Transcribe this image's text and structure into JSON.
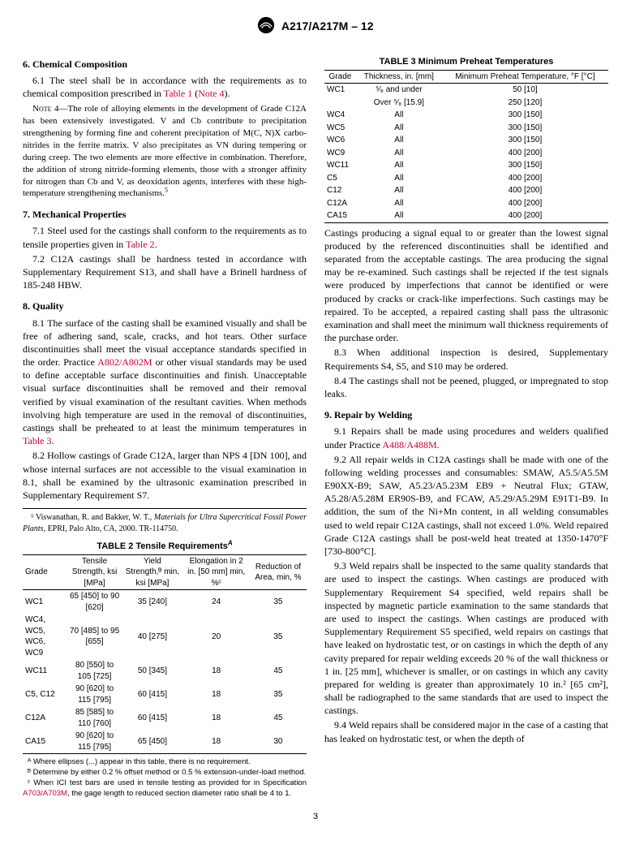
{
  "header": {
    "designation": "A217/A217M – 12"
  },
  "sections": {
    "s6": {
      "title": "6.  Chemical Composition",
      "p1_lead": "6.1 The steel shall be in accordance with the requirements as to chemical composition prescribed in ",
      "p1_ref1": "Table 1",
      "p1_mid": " (",
      "p1_ref2": "Note 4",
      "p1_end": ").",
      "note4_label": "Note 4—",
      "note4_body": "The role of alloying elements in the development of Grade C12A has been extensively investigated. V and Cb contribute to precipitation strengthening by forming fine and coherent precipitation of M(C, N)X carbo-nitrides in the ferrite matrix. V also precipitates as VN during tempering or during creep. The two elements are more effective in combination. Therefore, the addition of strong nitride-forming elements, those with a stronger affinity for nitrogen than Cb and V, as deoxidation agents, interferes with these high-temperature strengthening mechanisms."
    },
    "s7": {
      "title": "7.  Mechanical Properties",
      "p1_lead": "7.1 Steel used for the castings shall conform to the requirements as to tensile properties given in ",
      "p1_ref": "Table 2",
      "p1_end": ".",
      "p2": "7.2 C12A castings shall be hardness tested in accordance with Supplementary Requirement S13, and shall have a Brinell hardness of 185-248 HBW."
    },
    "s8": {
      "title": "8.  Quality",
      "p1_lead": "8.1 The surface of the casting shall be examined visually and shall be free of adhering sand, scale, cracks, and hot tears. Other surface discontinuities shall meet the visual acceptance standards specified in the order. Practice ",
      "p1_ref1": "A802/A802M",
      "p1_mid": " or other visual standards may be used to define acceptable surface discontinuities and finish. Unacceptable visual surface discontinuities shall be removed and their removal verified by visual examination of the resultant cavities. When methods involving high temperature are used in the removal of discontinuities, castings shall be preheated to at least the minimum temperatures in ",
      "p1_ref2": "Table 3",
      "p1_end": ".",
      "p2": "8.2 Hollow castings of Grade C12A, larger than NPS 4 [DN 100], and whose internal surfaces are not accessible to the visual examination in 8.1, shall be examined by the ultrasonic examination prescribed in Supplementary Requirement S7.",
      "p_cont": "Castings producing a signal equal to or greater than the lowest signal produced by the referenced discontinuities shall be identified and separated from the acceptable castings. The area producing the signal may be re-examined. Such castings shall be rejected if the test signals were produced by imperfections that cannot be identified or were produced by cracks or crack-like imperfections. Such castings may be repaired. To be accepted, a repaired casting shall pass the ultrasonic examination and shall meet the minimum wall thickness requirements of the purchase order.",
      "p3": "8.3 When additional inspection is desired, Supplementary Requirements S4, S5, and S10 may be ordered.",
      "p4": "8.4 The castings shall not be peened, plugged, or impregnated to stop leaks."
    },
    "s9": {
      "title": "9.  Repair by Welding",
      "p1_lead": "9.1 Repairs shall be made using procedures and welders qualified under Practice ",
      "p1_ref": "A488/A488M",
      "p1_end": ".",
      "p2": "9.2 All repair welds in C12A castings shall be made with one of the following welding processes and consumables: SMAW, A5.5/A5.5M E90XX-B9; SAW, A5.23/A5.23M EB9 + Neutral Flux; GTAW, A5.28/A5.28M ER90S-B9, and FCAW, A5.29/A5.29M E91T1-B9. In addition, the sum of the Ni+Mn content, in all welding consumables used to weld repair C12A castings, shall not exceed 1.0%. Weld repaired Grade C12A castings shall be post-weld heat treated at 1350-1470°F [730-800°C].",
      "p3": "9.3 Weld repairs shall be inspected to the same quality standards that are used to inspect the castings. When castings are produced with Supplementary Requirement S4 specified, weld repairs shall be inspected by magnetic particle examination to the same standards that are used to inspect the castings. When castings are produced with Supplementary Requirement S5 specified, weld repairs on castings that have leaked on hydrostatic test, or on castings in which the depth of any cavity prepared for repair welding exceeds 20 % of the wall thickness or 1 in. [25 mm], whichever is smaller, or on castings in which any cavity prepared for welding is greater than approximately 10 in.² [65 cm²], shall be radiographed to the same standards that are used to inspect the castings.",
      "p4": "9.4 Weld repairs shall be considered major in the case of a casting that has leaked on hydrostatic test, or when the depth of"
    },
    "footnote5_lead": "⁵ Viswanathan, R. and Bakker, W. T., ",
    "footnote5_ital": "Materials for Ultra Supercritical Fossil Power Plants",
    "footnote5_end": ", EPRI, Palo Alto, CA, 2000. TR-114750."
  },
  "table2": {
    "title": "TABLE 2 Tensile Requirements",
    "title_sup": "A",
    "headers": [
      "Grade",
      "Tensile Strength, ksi [MPa]",
      "Yield Strength,ᴮ min, ksi [MPa]",
      "Elongation in 2 in. [50 mm] min, %ᶜ",
      "Reduction of Area, min, %"
    ],
    "rows": [
      [
        "WC1",
        "65 [450] to 90 [620]",
        "35 [240]",
        "24",
        "35"
      ],
      [
        "WC4, WC5, WC6, WC9",
        "70 [485] to 95 [655]",
        "40 [275]",
        "20",
        "35"
      ],
      [
        "WC11",
        "80 [550] to 105 [725]",
        "50 [345]",
        "18",
        "45"
      ],
      [
        "C5, C12",
        "90 [620] to 115 [795]",
        "60 [415]",
        "18",
        "35"
      ],
      [
        "C12A",
        "85 [585] to 110 [760]",
        "60 [415]",
        "18",
        "45"
      ],
      [
        "CA15",
        "90 [620] to 115 [795]",
        "65 [450]",
        "18",
        "30"
      ]
    ],
    "notes": {
      "A": "ᴬ Where ellipses (...) appear in this table, there is no requirement.",
      "B": "ᴮ Determine by either 0.2 % offset method or 0.5 % extension-under-load method.",
      "C_lead": "ᶜ When ICI test bars are used in tensile testing as provided for in Specification ",
      "C_ref": "A703/A703M",
      "C_end": ", the gage length to reduced section diameter ratio shall be 4 to 1."
    }
  },
  "table3": {
    "title": "TABLE 3 Minimum Preheat Temperatures",
    "headers": [
      "Grade",
      "Thickness, in. [mm]",
      "Minimum Preheat Temperature, °F [°C]"
    ],
    "rows": [
      [
        "WC1",
        "⁵⁄₈ and under",
        "50 [10]"
      ],
      [
        "",
        "Over ⁵⁄₈ [15.9]",
        "250 [120]"
      ],
      [
        "WC4",
        "All",
        "300 [150]"
      ],
      [
        "WC5",
        "All",
        "300 [150]"
      ],
      [
        "WC6",
        "All",
        "300 [150]"
      ],
      [
        "WC9",
        "All",
        "400 [200]"
      ],
      [
        "WC11",
        "All",
        "300 [150]"
      ],
      [
        "C5",
        "All",
        "400 [200]"
      ],
      [
        "C12",
        "All",
        "400 [200]"
      ],
      [
        "C12A",
        "All",
        "400 [200]"
      ],
      [
        "CA15",
        "All",
        "400 [200]"
      ]
    ]
  },
  "page_number": "3"
}
